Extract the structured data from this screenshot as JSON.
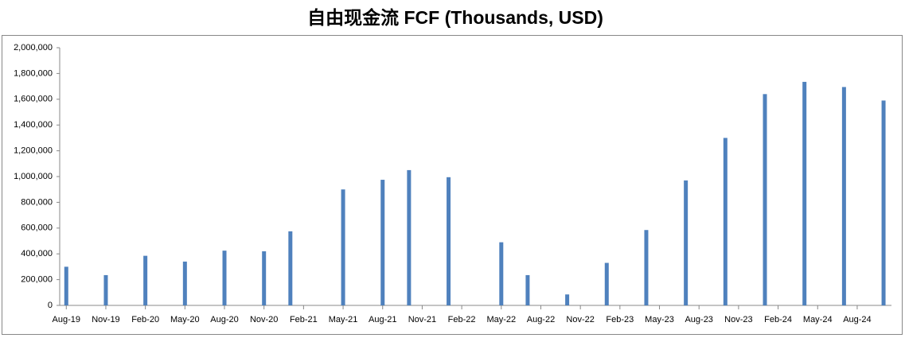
{
  "chart_data": {
    "type": "bar",
    "title": "自由现金流 FCF (Thousands, USD)",
    "x": [
      "2019-08",
      "2019-11",
      "2020-02",
      "2020-05",
      "2020-08",
      "2020-11",
      "2021-01",
      "2021-05",
      "2021-08",
      "2021-10",
      "2022-01",
      "2022-05",
      "2022-07",
      "2022-10",
      "2023-01",
      "2023-04",
      "2023-07",
      "2023-10",
      "2024-01",
      "2024-04",
      "2024-07",
      "2024-10"
    ],
    "values": [
      300000,
      235000,
      385000,
      340000,
      425000,
      420000,
      575000,
      900000,
      975000,
      1050000,
      995000,
      490000,
      235000,
      85000,
      330000,
      585000,
      970000,
      1300000,
      1640000,
      1735000,
      1695000,
      1590000
    ],
    "color": "#4f81bd",
    "xlim": [
      "2019-08",
      "2024-10"
    ],
    "xticks": [
      {
        "value": "2019-08",
        "label": "Aug-19"
      },
      {
        "value": "2019-11",
        "label": "Nov-19"
      },
      {
        "value": "2020-02",
        "label": "Feb-20"
      },
      {
        "value": "2020-05",
        "label": "May-20"
      },
      {
        "value": "2020-08",
        "label": "Aug-20"
      },
      {
        "value": "2020-11",
        "label": "Nov-20"
      },
      {
        "value": "2021-02",
        "label": "Feb-21"
      },
      {
        "value": "2021-05",
        "label": "May-21"
      },
      {
        "value": "2021-08",
        "label": "Aug-21"
      },
      {
        "value": "2021-11",
        "label": "Nov-21"
      },
      {
        "value": "2022-02",
        "label": "Feb-22"
      },
      {
        "value": "2022-05",
        "label": "May-22"
      },
      {
        "value": "2022-08",
        "label": "Aug-22"
      },
      {
        "value": "2022-11",
        "label": "Nov-22"
      },
      {
        "value": "2023-02",
        "label": "Feb-23"
      },
      {
        "value": "2023-05",
        "label": "May-23"
      },
      {
        "value": "2023-08",
        "label": "Aug-23"
      },
      {
        "value": "2023-11",
        "label": "Nov-23"
      },
      {
        "value": "2024-02",
        "label": "Feb-24"
      },
      {
        "value": "2024-05",
        "label": "May-24"
      },
      {
        "value": "2024-08",
        "label": "Aug-24"
      }
    ],
    "ylim": [
      0,
      2000000
    ],
    "yticks": [
      0,
      {
        "value": 200000,
        "label": "200,000"
      },
      {
        "value": 400000,
        "label": "400,000"
      },
      {
        "value": 600000,
        "label": "600,000"
      },
      {
        "value": 800000,
        "label": "800,000"
      },
      {
        "value": 1000000,
        "label": "1,000,000"
      },
      {
        "value": 1200000,
        "label": "1,200,000"
      },
      {
        "value": 1400000,
        "label": "1,400,000"
      },
      {
        "value": 1600000,
        "label": "1,600,000"
      },
      {
        "value": 1800000,
        "label": "1,800,000"
      },
      {
        "value": 2000000,
        "label": "2,000,000"
      }
    ],
    "grid": false
  }
}
